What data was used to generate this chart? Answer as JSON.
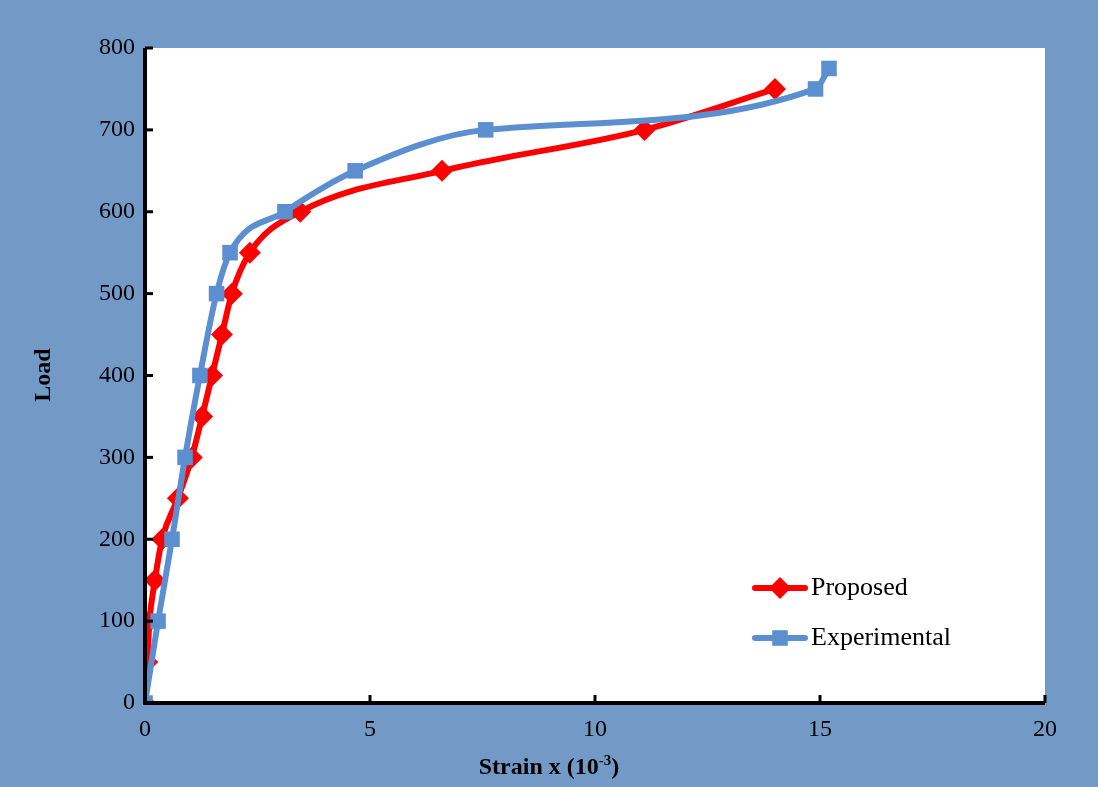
{
  "chart_data": {
    "type": "line",
    "xlabel": "Strain x (10$^{-3}$)",
    "ylabel": "Load",
    "xlim": [
      0,
      20
    ],
    "xticks": [
      0,
      5,
      10,
      15,
      20
    ],
    "ylim": [
      0,
      800
    ],
    "yticks": [
      0,
      100,
      200,
      300,
      400,
      500,
      600,
      700,
      800
    ],
    "grid": false,
    "legend": "bottom right",
    "line_style": "solid",
    "series": [
      {
        "name": "Proposed",
        "color": "#ff0000",
        "marker": "diamond",
        "x": [
          0,
          0.05,
          0.1,
          0.22,
          0.38,
          0.73,
          1.04,
          1.27,
          1.49,
          1.71,
          1.93,
          2.33,
          3.45,
          6.6,
          11.1,
          14.0
        ],
        "values": [
          0,
          50,
          100,
          150,
          200,
          250,
          300,
          350,
          400,
          450,
          500,
          550,
          600,
          650,
          700,
          750
        ]
      },
      {
        "name": "Experimental",
        "color": "#5b8fd0",
        "marker": "square",
        "x": [
          0,
          0.29,
          0.6,
          0.89,
          1.22,
          1.59,
          1.89,
          3.11,
          4.67,
          7.57,
          14.9,
          15.2
        ],
        "values": [
          0,
          100,
          200,
          300,
          400,
          500,
          550,
          600,
          650,
          700,
          750,
          775
        ]
      }
    ]
  }
}
